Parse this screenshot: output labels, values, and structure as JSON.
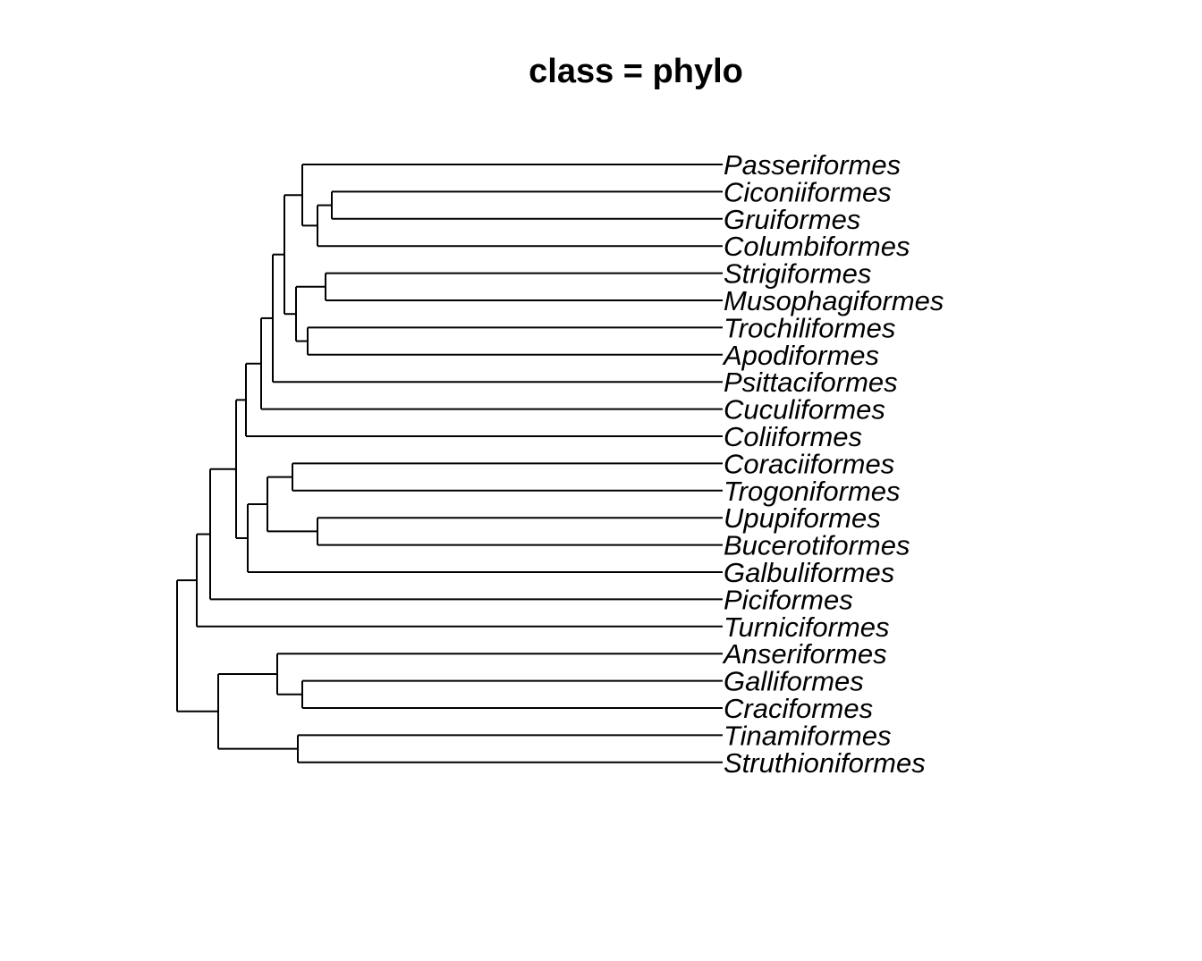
{
  "figure": {
    "title": "class = phylo"
  },
  "tree": {
    "type": "phylogram",
    "tips": [
      "Passeriformes",
      "Ciconiiformes",
      "Gruiformes",
      "Columbiformes",
      "Strigiformes",
      "Musophagiformes",
      "Trochiliformes",
      "Apodiformes",
      "Psittaciformes",
      "Cuculiformes",
      "Coliiformes",
      "Coraciiformes",
      "Trogoniformes",
      "Upupiformes",
      "Bucerotiformes",
      "Galbuliformes",
      "Piciformes",
      "Turniciformes",
      "Anseriformes",
      "Galliformes",
      "Craciformes",
      "Tinamiformes",
      "Struthioniformes"
    ],
    "newick": "((((((((Passeriformes,((Ciconiiformes,Gruiformes),Columbiformes)),((Strigiformes,Musophagiformes),(Trochiliformes,Apodiformes))),Psittaciformes),Cuculiformes),Coliiformes),(((Coraciiformes,Trogoniformes),(Upupiformes,Bucerotiformes)),Galbuliformes)),Piciformes),Turniciformes),((Anseriformes,(Galliformes,Craciformes)),(Tinamiformes,Struthioniformes)));",
    "edge_color": "#000000"
  }
}
